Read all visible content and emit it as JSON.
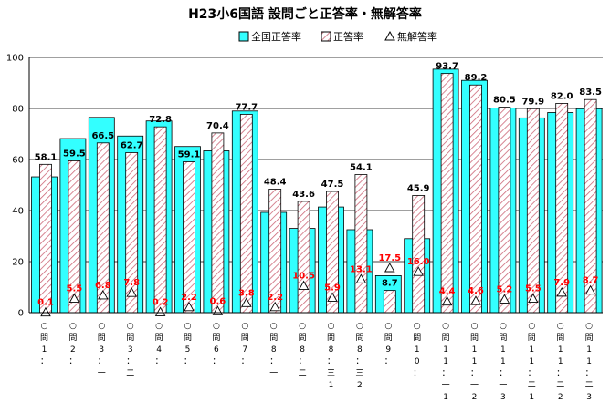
{
  "chart_data": {
    "type": "bar",
    "title": "H23小6国語 設問ごと正答率・無解答率",
    "ylim": [
      0,
      100
    ],
    "yticks": [
      0,
      20,
      40,
      60,
      80,
      100
    ],
    "grid": true,
    "legend_position": "top",
    "categories": [
      "問1",
      "問2",
      "問3一",
      "問3二",
      "問4",
      "問5",
      "問6",
      "問7",
      "問8一",
      "問8二",
      "問8三1",
      "問8三2",
      "問9",
      "問10",
      "問11一1",
      "問11一2",
      "問11一3",
      "問11二1",
      "問11二2",
      "問11二3"
    ],
    "category_glyphs": [
      [
        "○",
        "問",
        "1",
        "："
      ],
      [
        "○",
        "問",
        "2",
        "："
      ],
      [
        "○",
        "問",
        "3",
        "：",
        "一"
      ],
      [
        "○",
        "問",
        "3",
        "：",
        "二"
      ],
      [
        "○",
        "問",
        "4",
        "："
      ],
      [
        "○",
        "問",
        "5",
        "："
      ],
      [
        "○",
        "問",
        "6",
        "："
      ],
      [
        "○",
        "問",
        "7",
        "："
      ],
      [
        "○",
        "問",
        "8",
        "：",
        "一"
      ],
      [
        "○",
        "問",
        "8",
        "：",
        "二"
      ],
      [
        "○",
        "問",
        "8",
        "：",
        "三",
        "1"
      ],
      [
        "○",
        "問",
        "8",
        "：",
        "三",
        "2"
      ],
      [
        "○",
        "問",
        "9",
        "："
      ],
      [
        "○",
        "問",
        "1",
        "0",
        "："
      ],
      [
        "○",
        "問",
        "1",
        "1",
        "：",
        "一",
        "1"
      ],
      [
        "○",
        "問",
        "1",
        "1",
        "：",
        "一",
        "2"
      ],
      [
        "○",
        "問",
        "1",
        "1",
        "：",
        "一",
        "3"
      ],
      [
        "○",
        "問",
        "1",
        "1",
        "：",
        "二",
        "1"
      ],
      [
        "○",
        "問",
        "1",
        "1",
        "：",
        "二",
        "2"
      ],
      [
        "○",
        "問",
        "1",
        "1",
        "：",
        "二",
        "3"
      ]
    ],
    "series": [
      {
        "name": "全国正答率",
        "values": [
          53.2,
          68.2,
          76.5,
          69.2,
          75.1,
          65.1,
          63.4,
          79.0,
          39.3,
          33.0,
          41.4,
          32.5,
          14.5,
          29.0,
          95.4,
          91.0,
          80.2,
          76.3,
          78.4,
          79.9
        ]
      },
      {
        "name": "正答率",
        "values": [
          58.1,
          59.5,
          66.5,
          62.7,
          72.8,
          59.1,
          70.4,
          77.7,
          48.4,
          43.6,
          47.5,
          54.1,
          8.7,
          45.9,
          93.7,
          89.2,
          80.5,
          79.9,
          82.0,
          83.5
        ]
      },
      {
        "name": "無解答率",
        "values": [
          0.1,
          5.5,
          6.8,
          7.8,
          0.2,
          2.2,
          0.6,
          3.8,
          2.2,
          10.5,
          5.9,
          13.1,
          17.5,
          16.0,
          4.4,
          4.6,
          5.2,
          5.5,
          7.9,
          8.7
        ]
      }
    ],
    "value_labels": {
      "correct": [
        "58.1",
        "59.5",
        "66.5",
        "62.7",
        "72.8",
        "59.1",
        "70.4",
        "77.7",
        "48.4",
        "43.6",
        "47.5",
        "54.1",
        "8.7",
        "45.9",
        "93.7",
        "89.2",
        "80.5",
        "79.9",
        "82.0",
        "83.5"
      ],
      "no_answer": [
        "0.1",
        "5.5",
        "6.8",
        "7.8",
        "0.2",
        "2.2",
        "0.6",
        "3.8",
        "2.2",
        "10.5",
        "5.9",
        "13.1",
        "17.5",
        "16.0",
        "4.4",
        "4.6",
        "5.2",
        "5.5",
        "7.9",
        "8.7"
      ]
    },
    "colors": {
      "national_fill": "#33ffff",
      "correct_fill": "#ffffff",
      "correct_hatch": "#cc6677",
      "no_answer_label": "#ff0000",
      "correct_label": "#000000"
    }
  }
}
